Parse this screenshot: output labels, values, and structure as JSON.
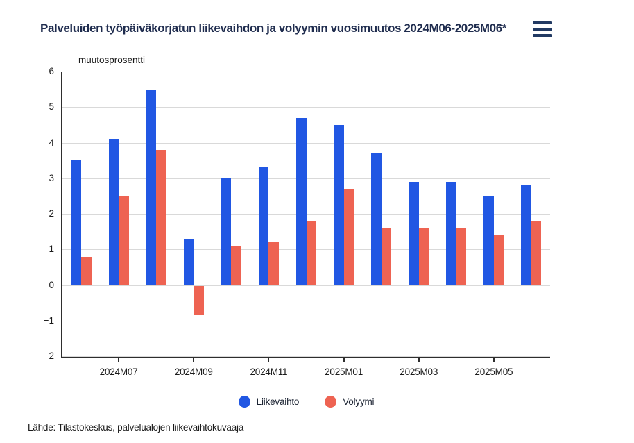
{
  "header": {
    "menu_icon": "hamburger-menu-icon"
  },
  "chart_data": {
    "type": "bar",
    "title": "Palveluiden työpäiväkorjatun liikevaihdon ja volyymin vuosimuutos 2024M06-2025M06*",
    "ylabel": "muutosprosentti",
    "xlabel": "",
    "categories": [
      "2024M06",
      "2024M07",
      "2024M08",
      "2024M09",
      "2024M10",
      "2024M11",
      "2024M12",
      "2025M01",
      "2025M02",
      "2025M03",
      "2025M04",
      "2025M05",
      "2025M06"
    ],
    "x_tick_labels": [
      "2024M07",
      "2024M09",
      "2024M11",
      "2025M01",
      "2025M03",
      "2025M05"
    ],
    "series": [
      {
        "name": "Liikevaihto",
        "color": "#2157e3",
        "values": [
          3.5,
          4.1,
          5.5,
          1.3,
          3.0,
          3.3,
          4.7,
          4.5,
          3.7,
          2.9,
          2.9,
          2.5,
          2.8
        ]
      },
      {
        "name": "Volyymi",
        "color": "#ee6352",
        "values": [
          0.8,
          2.5,
          3.8,
          -0.8,
          1.1,
          1.2,
          1.8,
          2.7,
          1.6,
          1.6,
          1.6,
          1.4,
          1.8
        ]
      }
    ],
    "ylim": [
      -2,
      6
    ],
    "y_ticks": [
      6,
      5,
      4,
      3,
      2,
      1,
      0,
      -1,
      -2
    ],
    "grid": true,
    "legend_position": "bottom"
  },
  "footer": {
    "source": "Lähde: Tilastokeskus, palvelualojen liikevaihtokuvaaja"
  }
}
